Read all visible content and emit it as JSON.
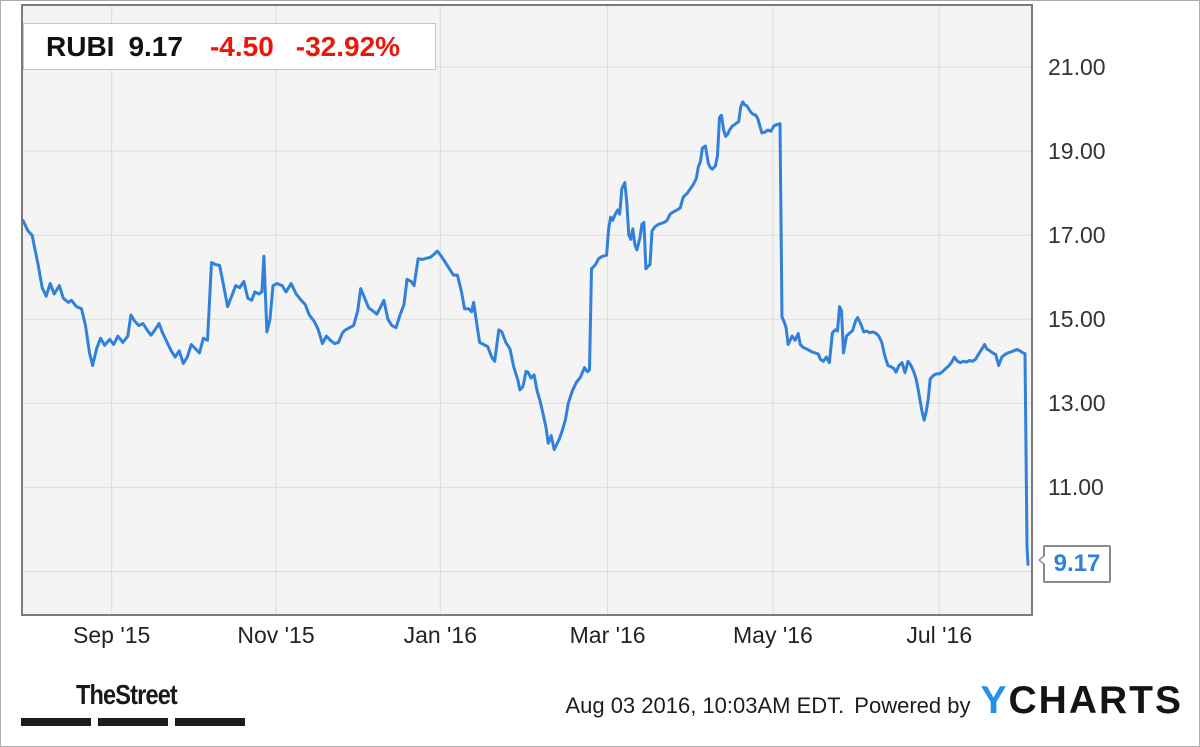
{
  "quote_header": {
    "ticker": "RUBI",
    "price": "9.17",
    "change": "-4.50",
    "change_pct": "-32.92%",
    "text_color": "#111111",
    "change_color": "#ee1609"
  },
  "chart_data": {
    "type": "line",
    "title": "RUBI stock price, 1 year",
    "x_domain": [
      "2015-08-03",
      "2016-08-03"
    ],
    "x_ticks": [
      {
        "label": "Sep '15",
        "f": 0.088
      },
      {
        "label": "Nov '15",
        "f": 0.251
      },
      {
        "label": "Jan '16",
        "f": 0.414
      },
      {
        "label": "Mar '16",
        "f": 0.58
      },
      {
        "label": "May '16",
        "f": 0.744
      },
      {
        "label": "Jul '16",
        "f": 0.909
      }
    ],
    "y_ticks": [
      {
        "v": 21,
        "label": "21.00"
      },
      {
        "v": 19,
        "label": "19.00"
      },
      {
        "v": 17,
        "label": "17.00"
      },
      {
        "v": 15,
        "label": "15.00"
      },
      {
        "v": 13,
        "label": "13.00"
      },
      {
        "v": 11,
        "label": "11.00"
      }
    ],
    "y_gridlines": [
      21,
      19,
      17,
      15,
      13,
      11,
      9
    ],
    "ylim": [
      7.99,
      22.45
    ],
    "grid_on": true,
    "grid_color": "#dcdcdc",
    "plot_bg": "#f4f4f4",
    "line_color": "#3181db",
    "last_price": 9.17,
    "last_price_label": "9.17",
    "points": [
      [
        0.0,
        17.35
      ],
      [
        0.005,
        17.1
      ],
      [
        0.009,
        17.0
      ],
      [
        0.012,
        16.65
      ],
      [
        0.015,
        16.3
      ],
      [
        0.019,
        15.75
      ],
      [
        0.023,
        15.55
      ],
      [
        0.027,
        15.85
      ],
      [
        0.031,
        15.6
      ],
      [
        0.036,
        15.8
      ],
      [
        0.04,
        15.5
      ],
      [
        0.045,
        15.4
      ],
      [
        0.048,
        15.45
      ],
      [
        0.053,
        15.3
      ],
      [
        0.058,
        15.25
      ],
      [
        0.062,
        14.85
      ],
      [
        0.066,
        14.2
      ],
      [
        0.069,
        13.9
      ],
      [
        0.073,
        14.3
      ],
      [
        0.077,
        14.55
      ],
      [
        0.081,
        14.38
      ],
      [
        0.086,
        14.52
      ],
      [
        0.09,
        14.4
      ],
      [
        0.094,
        14.6
      ],
      [
        0.099,
        14.45
      ],
      [
        0.104,
        14.6
      ],
      [
        0.107,
        15.1
      ],
      [
        0.111,
        14.95
      ],
      [
        0.115,
        14.85
      ],
      [
        0.119,
        14.9
      ],
      [
        0.123,
        14.75
      ],
      [
        0.127,
        14.62
      ],
      [
        0.131,
        14.75
      ],
      [
        0.135,
        14.9
      ],
      [
        0.138,
        14.7
      ],
      [
        0.143,
        14.45
      ],
      [
        0.147,
        14.25
      ],
      [
        0.151,
        14.1
      ],
      [
        0.155,
        14.25
      ],
      [
        0.159,
        13.95
      ],
      [
        0.163,
        14.1
      ],
      [
        0.167,
        14.4
      ],
      [
        0.171,
        14.3
      ],
      [
        0.175,
        14.2
      ],
      [
        0.179,
        14.55
      ],
      [
        0.183,
        14.5
      ],
      [
        0.187,
        16.35
      ],
      [
        0.191,
        16.3
      ],
      [
        0.195,
        16.28
      ],
      [
        0.199,
        15.8
      ],
      [
        0.203,
        15.3
      ],
      [
        0.207,
        15.55
      ],
      [
        0.211,
        15.8
      ],
      [
        0.215,
        15.75
      ],
      [
        0.219,
        15.9
      ],
      [
        0.223,
        15.5
      ],
      [
        0.227,
        15.45
      ],
      [
        0.23,
        15.65
      ],
      [
        0.234,
        15.6
      ],
      [
        0.237,
        15.65
      ],
      [
        0.239,
        16.5
      ],
      [
        0.242,
        14.7
      ],
      [
        0.245,
        15.0
      ],
      [
        0.248,
        15.8
      ],
      [
        0.252,
        15.85
      ],
      [
        0.257,
        15.8
      ],
      [
        0.261,
        15.65
      ],
      [
        0.266,
        15.85
      ],
      [
        0.271,
        15.6
      ],
      [
        0.276,
        15.45
      ],
      [
        0.28,
        15.35
      ],
      [
        0.284,
        15.1
      ],
      [
        0.289,
        14.95
      ],
      [
        0.293,
        14.75
      ],
      [
        0.297,
        14.42
      ],
      [
        0.301,
        14.6
      ],
      [
        0.305,
        14.5
      ],
      [
        0.309,
        14.42
      ],
      [
        0.313,
        14.45
      ],
      [
        0.317,
        14.68
      ],
      [
        0.32,
        14.75
      ],
      [
        0.324,
        14.8
      ],
      [
        0.328,
        14.85
      ],
      [
        0.332,
        15.2
      ],
      [
        0.335,
        15.73
      ],
      [
        0.339,
        15.5
      ],
      [
        0.343,
        15.27
      ],
      [
        0.347,
        15.2
      ],
      [
        0.351,
        15.12
      ],
      [
        0.355,
        15.3
      ],
      [
        0.358,
        15.45
      ],
      [
        0.362,
        15.0
      ],
      [
        0.366,
        14.85
      ],
      [
        0.37,
        14.8
      ],
      [
        0.374,
        15.1
      ],
      [
        0.378,
        15.35
      ],
      [
        0.381,
        15.95
      ],
      [
        0.385,
        15.9
      ],
      [
        0.388,
        15.8
      ],
      [
        0.392,
        16.44
      ],
      [
        0.396,
        16.42
      ],
      [
        0.4,
        16.45
      ],
      [
        0.404,
        16.47
      ],
      [
        0.408,
        16.55
      ],
      [
        0.411,
        16.62
      ],
      [
        0.415,
        16.5
      ],
      [
        0.419,
        16.35
      ],
      [
        0.423,
        16.2
      ],
      [
        0.427,
        16.05
      ],
      [
        0.431,
        16.05
      ],
      [
        0.435,
        15.65
      ],
      [
        0.438,
        15.25
      ],
      [
        0.442,
        15.25
      ],
      [
        0.445,
        15.18
      ],
      [
        0.447,
        15.4
      ],
      [
        0.45,
        14.92
      ],
      [
        0.453,
        14.45
      ],
      [
        0.457,
        14.4
      ],
      [
        0.461,
        14.35
      ],
      [
        0.465,
        14.1
      ],
      [
        0.468,
        14.0
      ],
      [
        0.472,
        14.75
      ],
      [
        0.475,
        14.7
      ],
      [
        0.479,
        14.45
      ],
      [
        0.483,
        14.3
      ],
      [
        0.487,
        13.85
      ],
      [
        0.491,
        13.55
      ],
      [
        0.493,
        13.32
      ],
      [
        0.496,
        13.4
      ],
      [
        0.499,
        13.76
      ],
      [
        0.501,
        13.74
      ],
      [
        0.504,
        13.6
      ],
      [
        0.507,
        13.68
      ],
      [
        0.51,
        13.3
      ],
      [
        0.513,
        13.05
      ],
      [
        0.516,
        12.75
      ],
      [
        0.519,
        12.4
      ],
      [
        0.521,
        12.05
      ],
      [
        0.524,
        12.23
      ],
      [
        0.527,
        11.9
      ],
      [
        0.529,
        12.0
      ],
      [
        0.532,
        12.15
      ],
      [
        0.535,
        12.36
      ],
      [
        0.538,
        12.6
      ],
      [
        0.541,
        13.0
      ],
      [
        0.545,
        13.3
      ],
      [
        0.549,
        13.5
      ],
      [
        0.553,
        13.62
      ],
      [
        0.557,
        13.85
      ],
      [
        0.56,
        13.75
      ],
      [
        0.562,
        13.8
      ],
      [
        0.564,
        16.2
      ],
      [
        0.568,
        16.3
      ],
      [
        0.571,
        16.44
      ],
      [
        0.575,
        16.5
      ],
      [
        0.579,
        16.52
      ],
      [
        0.581,
        17.15
      ],
      [
        0.583,
        17.43
      ],
      [
        0.585,
        17.35
      ],
      [
        0.587,
        17.47
      ],
      [
        0.59,
        17.6
      ],
      [
        0.592,
        17.5
      ],
      [
        0.594,
        18.1
      ],
      [
        0.597,
        18.25
      ],
      [
        0.599,
        17.78
      ],
      [
        0.601,
        17.0
      ],
      [
        0.603,
        16.9
      ],
      [
        0.605,
        17.15
      ],
      [
        0.607,
        16.77
      ],
      [
        0.609,
        16.65
      ],
      [
        0.612,
        16.93
      ],
      [
        0.614,
        17.26
      ],
      [
        0.616,
        17.3
      ],
      [
        0.618,
        16.2
      ],
      [
        0.62,
        16.26
      ],
      [
        0.622,
        16.3
      ],
      [
        0.624,
        17.1
      ],
      [
        0.627,
        17.2
      ],
      [
        0.63,
        17.25
      ],
      [
        0.633,
        17.28
      ],
      [
        0.636,
        17.3
      ],
      [
        0.639,
        17.35
      ],
      [
        0.642,
        17.5
      ],
      [
        0.645,
        17.55
      ],
      [
        0.649,
        17.6
      ],
      [
        0.652,
        17.65
      ],
      [
        0.655,
        17.9
      ],
      [
        0.659,
        18.0
      ],
      [
        0.662,
        18.1
      ],
      [
        0.664,
        18.17
      ],
      [
        0.666,
        18.25
      ],
      [
        0.668,
        18.35
      ],
      [
        0.67,
        18.63
      ],
      [
        0.672,
        18.75
      ],
      [
        0.674,
        19.07
      ],
      [
        0.677,
        19.12
      ],
      [
        0.68,
        18.7
      ],
      [
        0.682,
        18.6
      ],
      [
        0.684,
        18.57
      ],
      [
        0.687,
        18.65
      ],
      [
        0.689,
        18.9
      ],
      [
        0.691,
        19.8
      ],
      [
        0.693,
        19.85
      ],
      [
        0.695,
        19.5
      ],
      [
        0.697,
        19.35
      ],
      [
        0.699,
        19.4
      ],
      [
        0.701,
        19.5
      ],
      [
        0.704,
        19.6
      ],
      [
        0.706,
        19.63
      ],
      [
        0.708,
        19.67
      ],
      [
        0.71,
        19.7
      ],
      [
        0.712,
        20.05
      ],
      [
        0.714,
        20.17
      ],
      [
        0.716,
        20.1
      ],
      [
        0.718,
        20.08
      ],
      [
        0.72,
        20.0
      ],
      [
        0.722,
        19.93
      ],
      [
        0.724,
        19.88
      ],
      [
        0.727,
        19.85
      ],
      [
        0.729,
        19.77
      ],
      [
        0.731,
        19.6
      ],
      [
        0.733,
        19.43
      ],
      [
        0.736,
        19.45
      ],
      [
        0.739,
        19.5
      ],
      [
        0.742,
        19.47
      ],
      [
        0.745,
        19.6
      ],
      [
        0.748,
        19.63
      ],
      [
        0.751,
        19.65
      ],
      [
        0.753,
        15.05
      ],
      [
        0.755,
        14.95
      ],
      [
        0.757,
        14.8
      ],
      [
        0.759,
        14.4
      ],
      [
        0.761,
        14.5
      ],
      [
        0.763,
        14.6
      ],
      [
        0.766,
        14.5
      ],
      [
        0.769,
        14.66
      ],
      [
        0.771,
        14.4
      ],
      [
        0.774,
        14.33
      ],
      [
        0.777,
        14.3
      ],
      [
        0.78,
        14.26
      ],
      [
        0.783,
        14.22
      ],
      [
        0.786,
        14.2
      ],
      [
        0.789,
        14.17
      ],
      [
        0.791,
        14.05
      ],
      [
        0.794,
        14.0
      ],
      [
        0.797,
        14.1
      ],
      [
        0.8,
        13.97
      ],
      [
        0.803,
        14.68
      ],
      [
        0.806,
        14.75
      ],
      [
        0.808,
        14.72
      ],
      [
        0.81,
        15.3
      ],
      [
        0.812,
        15.2
      ],
      [
        0.814,
        14.2
      ],
      [
        0.817,
        14.6
      ],
      [
        0.82,
        14.67
      ],
      [
        0.823,
        14.73
      ],
      [
        0.826,
        14.96
      ],
      [
        0.828,
        15.04
      ],
      [
        0.831,
        14.9
      ],
      [
        0.834,
        14.7
      ],
      [
        0.837,
        14.72
      ],
      [
        0.84,
        14.68
      ],
      [
        0.843,
        14.7
      ],
      [
        0.846,
        14.67
      ],
      [
        0.849,
        14.6
      ],
      [
        0.852,
        14.45
      ],
      [
        0.855,
        14.13
      ],
      [
        0.858,
        13.9
      ],
      [
        0.861,
        13.87
      ],
      [
        0.864,
        13.83
      ],
      [
        0.866,
        13.74
      ],
      [
        0.869,
        13.9
      ],
      [
        0.872,
        13.97
      ],
      [
        0.875,
        13.73
      ],
      [
        0.878,
        14.0
      ],
      [
        0.881,
        13.9
      ],
      [
        0.884,
        13.73
      ],
      [
        0.886,
        13.58
      ],
      [
        0.888,
        13.34
      ],
      [
        0.89,
        13.06
      ],
      [
        0.892,
        12.8
      ],
      [
        0.894,
        12.6
      ],
      [
        0.896,
        12.8
      ],
      [
        0.898,
        13.1
      ],
      [
        0.9,
        13.58
      ],
      [
        0.903,
        13.66
      ],
      [
        0.906,
        13.7
      ],
      [
        0.909,
        13.7
      ],
      [
        0.912,
        13.75
      ],
      [
        0.915,
        13.82
      ],
      [
        0.918,
        13.88
      ],
      [
        0.921,
        13.97
      ],
      [
        0.924,
        14.1
      ],
      [
        0.927,
        14.0
      ],
      [
        0.93,
        13.97
      ],
      [
        0.933,
        14.0
      ],
      [
        0.936,
        13.98
      ],
      [
        0.939,
        14.02
      ],
      [
        0.942,
        14.0
      ],
      [
        0.945,
        14.05
      ],
      [
        0.948,
        14.17
      ],
      [
        0.951,
        14.28
      ],
      [
        0.954,
        14.4
      ],
      [
        0.956,
        14.3
      ],
      [
        0.959,
        14.25
      ],
      [
        0.962,
        14.2
      ],
      [
        0.965,
        14.16
      ],
      [
        0.968,
        13.9
      ],
      [
        0.971,
        14.1
      ],
      [
        0.974,
        14.16
      ],
      [
        0.977,
        14.2
      ],
      [
        0.98,
        14.22
      ],
      [
        0.983,
        14.25
      ],
      [
        0.986,
        14.28
      ],
      [
        0.989,
        14.25
      ],
      [
        0.992,
        14.2
      ],
      [
        0.994,
        14.18
      ],
      [
        0.996,
        9.6
      ],
      [
        0.997,
        9.17
      ]
    ]
  },
  "footer": {
    "brand": "TheStreet",
    "timestamp": "Aug 03 2016, 10:03AM EDT.",
    "powered_by": "Powered by",
    "ycharts_y": "Y",
    "ycharts_rest": "CHARTS",
    "ycharts_y_color": "#2590ea"
  }
}
